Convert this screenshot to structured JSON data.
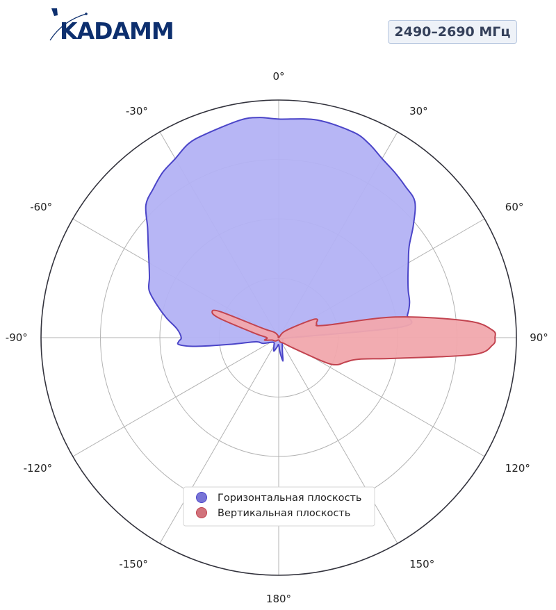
{
  "brand": {
    "logo_text": "KADAMM",
    "logo_color": "#0d2f6e"
  },
  "frequency_badge": "2490–2690 МГц",
  "chart_data": {
    "type": "polar-area",
    "angle_unit": "degrees",
    "angle_zero": "top",
    "angle_direction": "clockwise",
    "angle_ticks": [
      "0°",
      "30°",
      "60°",
      "90°",
      "120°",
      "150°",
      "180°",
      "-150°",
      "-120°",
      "-90°",
      "-60°",
      "-30°"
    ],
    "r_range": [
      0,
      1
    ],
    "r_grid": [
      0.25,
      0.5,
      0.75,
      1.0
    ],
    "grid": true,
    "legend_position": "bottom-center",
    "series": [
      {
        "name": "Горизонтальная плоскость",
        "color": "#4b45c8",
        "fill": "#b3b2f4",
        "points": [
          [
            0,
            0.92
          ],
          [
            10,
            0.93
          ],
          [
            20,
            0.92
          ],
          [
            25,
            0.9
          ],
          [
            30,
            0.87
          ],
          [
            35,
            0.85
          ],
          [
            40,
            0.83
          ],
          [
            45,
            0.81
          ],
          [
            50,
            0.74
          ],
          [
            55,
            0.67
          ],
          [
            60,
            0.63
          ],
          [
            65,
            0.6
          ],
          [
            70,
            0.58
          ],
          [
            75,
            0.57
          ],
          [
            80,
            0.55
          ],
          [
            85,
            0.52
          ],
          [
            90,
            0.05
          ],
          [
            100,
            0.02
          ],
          [
            120,
            0.02
          ],
          [
            150,
            0.03
          ],
          [
            165,
            0.06
          ],
          [
            170,
            0.1
          ],
          [
            175,
            0.06
          ],
          [
            180,
            0.03
          ],
          [
            -170,
            0.04
          ],
          [
            -160,
            0.06
          ],
          [
            -150,
            0.04
          ],
          [
            -130,
            0.03
          ],
          [
            -110,
            0.07
          ],
          [
            -100,
            0.1
          ],
          [
            -98,
            0.2
          ],
          [
            -96,
            0.35
          ],
          [
            -94,
            0.42
          ],
          [
            -92,
            0.42
          ],
          [
            -90,
            0.41
          ],
          [
            -85,
            0.43
          ],
          [
            -80,
            0.48
          ],
          [
            -75,
            0.53
          ],
          [
            -70,
            0.58
          ],
          [
            -65,
            0.6
          ],
          [
            -60,
            0.63
          ],
          [
            -55,
            0.67
          ],
          [
            -50,
            0.72
          ],
          [
            -45,
            0.79
          ],
          [
            -40,
            0.82
          ],
          [
            -35,
            0.85
          ],
          [
            -30,
            0.87
          ],
          [
            -25,
            0.9
          ],
          [
            -20,
            0.91
          ],
          [
            -10,
            0.93
          ],
          [
            -5,
            0.93
          ]
        ]
      },
      {
        "name": "Вертикальная плоскость",
        "color": "#c2434f",
        "fill": "#f1a8ad",
        "points": [
          [
            0,
            0.0
          ],
          [
            40,
            0.03
          ],
          [
            55,
            0.08
          ],
          [
            62,
            0.16
          ],
          [
            65,
            0.18
          ],
          [
            70,
            0.17
          ],
          [
            75,
            0.2
          ],
          [
            80,
            0.5
          ],
          [
            85,
            0.8
          ],
          [
            88,
            0.9
          ],
          [
            90,
            0.91
          ],
          [
            92,
            0.9
          ],
          [
            95,
            0.82
          ],
          [
            100,
            0.5
          ],
          [
            105,
            0.35
          ],
          [
            110,
            0.3
          ],
          [
            115,
            0.27
          ],
          [
            118,
            0.22
          ],
          [
            125,
            0.08
          ],
          [
            140,
            0.03
          ],
          [
            160,
            0.02
          ],
          [
            180,
            0.01
          ],
          [
            -135,
            0.02
          ],
          [
            -110,
            0.03
          ],
          [
            -100,
            0.06
          ],
          [
            -90,
            0.05
          ],
          [
            -80,
            0.1
          ],
          [
            -72,
            0.26
          ],
          [
            -69,
            0.3
          ],
          [
            -66,
            0.27
          ],
          [
            -60,
            0.08
          ],
          [
            -40,
            0.03
          ],
          [
            -20,
            0.01
          ]
        ]
      }
    ]
  }
}
